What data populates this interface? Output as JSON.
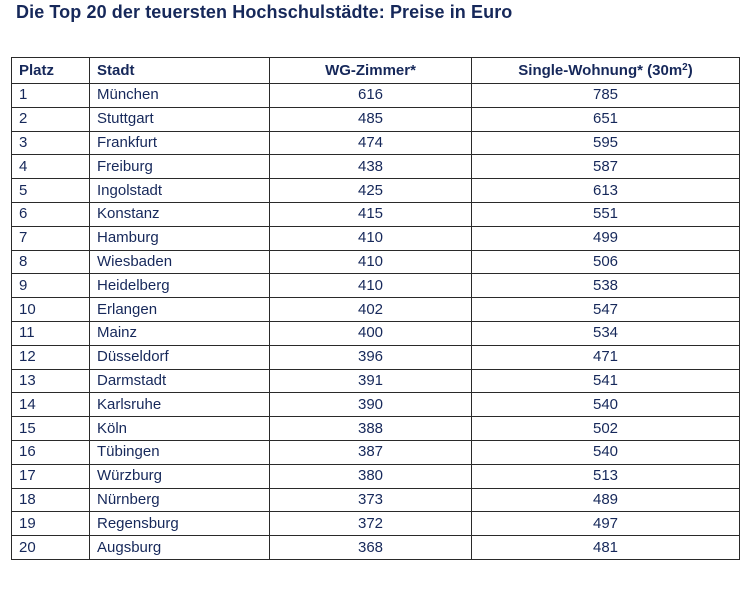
{
  "title": "Die Top 20 der teuersten Hochschulstädte: Preise in Euro",
  "header": {
    "rank": "Platz",
    "city": "Stadt",
    "wg": "WG-Zimmer*",
    "single_prefix": "Single-Wohnung* (30m",
    "single_sup": "2",
    "single_suffix": ")"
  },
  "rows": [
    {
      "rank": "1",
      "city": "München",
      "wg": "616",
      "single": "785"
    },
    {
      "rank": "2",
      "city": "Stuttgart",
      "wg": "485",
      "single": "651"
    },
    {
      "rank": "3",
      "city": "Frankfurt",
      "wg": "474",
      "single": "595"
    },
    {
      "rank": "4",
      "city": "Freiburg",
      "wg": "438",
      "single": "587"
    },
    {
      "rank": "5",
      "city": "Ingolstadt",
      "wg": "425",
      "single": "613"
    },
    {
      "rank": "6",
      "city": "Konstanz",
      "wg": "415",
      "single": "551"
    },
    {
      "rank": "7",
      "city": "Hamburg",
      "wg": "410",
      "single": "499"
    },
    {
      "rank": "8",
      "city": "Wiesbaden",
      "wg": "410",
      "single": "506"
    },
    {
      "rank": "9",
      "city": "Heidelberg",
      "wg": "410",
      "single": "538"
    },
    {
      "rank": "10",
      "city": "Erlangen",
      "wg": "402",
      "single": "547"
    },
    {
      "rank": "11",
      "city": "Mainz",
      "wg": "400",
      "single": "534"
    },
    {
      "rank": "12",
      "city": "Düsseldorf",
      "wg": "396",
      "single": "471"
    },
    {
      "rank": "13",
      "city": "Darmstadt",
      "wg": "391",
      "single": "541"
    },
    {
      "rank": "14",
      "city": "Karlsruhe",
      "wg": "390",
      "single": "540"
    },
    {
      "rank": "15",
      "city": "Köln",
      "wg": "388",
      "single": "502"
    },
    {
      "rank": "16",
      "city": "Tübingen",
      "wg": "387",
      "single": "540"
    },
    {
      "rank": "17",
      "city": "Würzburg",
      "wg": "380",
      "single": "513"
    },
    {
      "rank": "18",
      "city": "Nürnberg",
      "wg": "373",
      "single": "489"
    },
    {
      "rank": "19",
      "city": "Regensburg",
      "wg": "372",
      "single": "497"
    },
    {
      "rank": "20",
      "city": "Augsburg",
      "wg": "368",
      "single": "481"
    }
  ]
}
